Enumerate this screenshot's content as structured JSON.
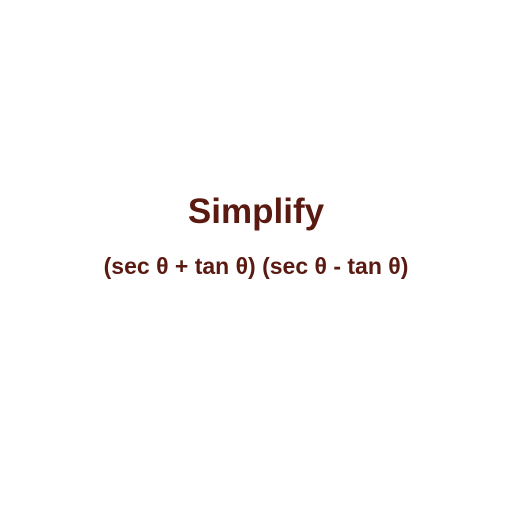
{
  "title": "Simplify",
  "expression": "(sec θ + tan θ) (sec θ - tan θ)",
  "colors": {
    "background": "#ffffff",
    "text": "#5a1a12"
  }
}
